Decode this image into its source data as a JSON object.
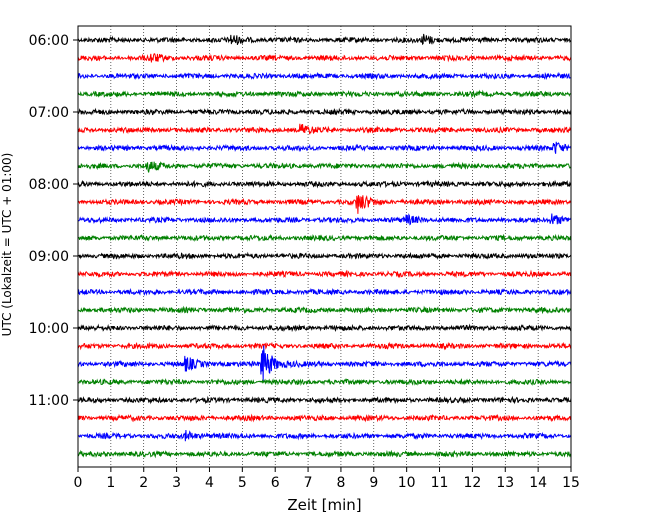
{
  "chart_data": {
    "type": "line",
    "title": "",
    "xlabel": "Zeit  [min]",
    "ylabel": "UTC (Lokalzeit = UTC + 01:00)",
    "xlim": [
      0,
      15
    ],
    "x_ticks": [
      0,
      1,
      2,
      3,
      4,
      5,
      6,
      7,
      8,
      9,
      10,
      11,
      12,
      13,
      14,
      15
    ],
    "y_ticks": [
      "06:00",
      "07:00",
      "08:00",
      "09:00",
      "10:00",
      "11:00"
    ],
    "grid": "vertical dotted",
    "trace_interval_minutes": 15,
    "trace_colors": [
      "#000000",
      "#ff0000",
      "#0000ff",
      "#008000"
    ],
    "traces": [
      {
        "start": "06:00",
        "color": "#000000",
        "events": [
          [
            4.7,
            1.0
          ],
          [
            10.5,
            1.2
          ]
        ]
      },
      {
        "start": "06:15",
        "color": "#ff0000",
        "events": [
          [
            2.2,
            1.0
          ]
        ]
      },
      {
        "start": "06:30",
        "color": "#0000ff",
        "events": []
      },
      {
        "start": "06:45",
        "color": "#008000",
        "events": []
      },
      {
        "start": "07:00",
        "color": "#000000",
        "events": []
      },
      {
        "start": "07:15",
        "color": "#ff0000",
        "events": [
          [
            6.8,
            1.2
          ]
        ]
      },
      {
        "start": "07:30",
        "color": "#0000ff",
        "events": [
          [
            14.5,
            1.5
          ]
        ]
      },
      {
        "start": "07:45",
        "color": "#008000",
        "events": [
          [
            2.1,
            1.2
          ]
        ]
      },
      {
        "start": "08:00",
        "color": "#000000",
        "events": []
      },
      {
        "start": "08:15",
        "color": "#ff0000",
        "events": [
          [
            8.5,
            2.5
          ]
        ]
      },
      {
        "start": "08:30",
        "color": "#0000ff",
        "events": [
          [
            10.0,
            1.0
          ],
          [
            14.4,
            1.5
          ]
        ]
      },
      {
        "start": "08:45",
        "color": "#008000",
        "events": []
      },
      {
        "start": "09:00",
        "color": "#000000",
        "events": []
      },
      {
        "start": "09:15",
        "color": "#ff0000",
        "events": []
      },
      {
        "start": "09:30",
        "color": "#0000ff",
        "events": []
      },
      {
        "start": "09:45",
        "color": "#008000",
        "events": []
      },
      {
        "start": "10:00",
        "color": "#000000",
        "events": []
      },
      {
        "start": "10:15",
        "color": "#ff0000",
        "events": []
      },
      {
        "start": "10:30",
        "color": "#0000ff",
        "events": [
          [
            3.3,
            1.5
          ],
          [
            5.6,
            5.0
          ]
        ]
      },
      {
        "start": "10:45",
        "color": "#008000",
        "events": []
      },
      {
        "start": "11:00",
        "color": "#000000",
        "events": []
      },
      {
        "start": "11:15",
        "color": "#ff0000",
        "events": []
      },
      {
        "start": "11:30",
        "color": "#0000ff",
        "events": [
          [
            3.3,
            1.0
          ]
        ]
      },
      {
        "start": "11:45",
        "color": "#008000",
        "events": []
      }
    ]
  }
}
